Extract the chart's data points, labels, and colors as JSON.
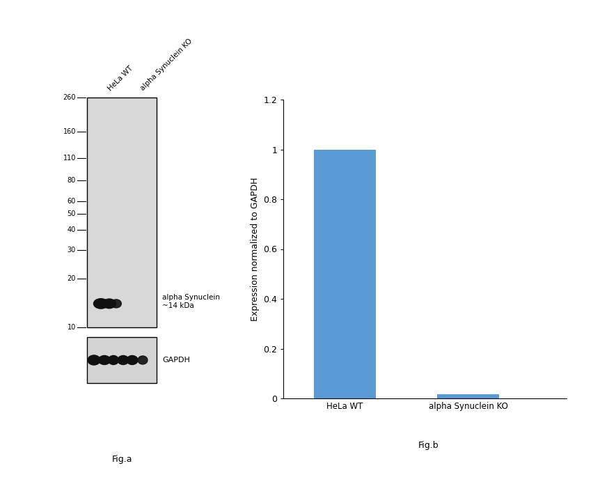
{
  "fig_width": 8.85,
  "fig_height": 7.15,
  "background_color": "#ffffff",
  "wb_panel": {
    "label": "Fig.a",
    "col_labels": [
      "HeLa WT",
      "alpha Synuclein KO"
    ],
    "ladder_marks": [
      260,
      160,
      110,
      80,
      60,
      50,
      40,
      30,
      20,
      10
    ],
    "band_annotation": "alpha Synuclein\n~14 kDa",
    "gapdh_label": "GAPDH",
    "main_box_color": "#d8d8d8",
    "gapdh_box_color": "#d4d4d4",
    "band_color": "#111111"
  },
  "bar_panel": {
    "label": "Fig.b",
    "categories": [
      "HeLa WT",
      "alpha Synuclein KO"
    ],
    "values": [
      1.0,
      0.018
    ],
    "bar_color": "#5b9bd5",
    "ylabel": "Expression normalized to GAPDH",
    "ylim": [
      0,
      1.2
    ],
    "yticks": [
      0,
      0.2,
      0.4,
      0.6,
      0.8,
      1.0,
      1.2
    ]
  }
}
